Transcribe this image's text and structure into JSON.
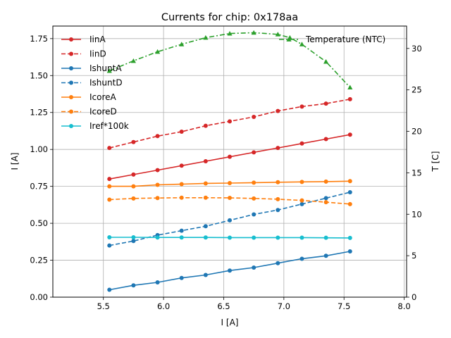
{
  "chart_data": {
    "type": "line",
    "title": "Currents for chip: 0x178aa",
    "xlabel": "I [A]",
    "ylabel": "I [A]",
    "y2label": "T [C]",
    "xlim": [
      5.08,
      8.02
    ],
    "ylim": [
      0.0,
      1.835
    ],
    "y2lim": [
      0.0,
      32.7
    ],
    "xticks": [
      5.5,
      6.0,
      6.5,
      7.0,
      7.5,
      8.0
    ],
    "xtick_labels": [
      "5.5",
      "6.0",
      "6.5",
      "7.0",
      "7.5",
      "8.0"
    ],
    "yticks": [
      0.0,
      0.25,
      0.5,
      0.75,
      1.0,
      1.25,
      1.5,
      1.75
    ],
    "ytick_labels": [
      "0.00",
      "0.25",
      "0.50",
      "0.75",
      "1.00",
      "1.25",
      "1.50",
      "1.75"
    ],
    "y2ticks": [
      0,
      5,
      10,
      15,
      20,
      25,
      30
    ],
    "y2tick_labels": [
      "0",
      "5",
      "10",
      "15",
      "20",
      "25",
      "30"
    ],
    "grid": true,
    "legend_position": "top-left",
    "x": [
      5.55,
      5.75,
      5.95,
      6.15,
      6.35,
      6.55,
      6.75,
      6.95,
      7.15,
      7.35,
      7.55
    ],
    "series": [
      {
        "name": "IinA",
        "color": "#d62728",
        "dashed": false,
        "marker": "circle",
        "values": [
          0.8,
          0.83,
          0.86,
          0.89,
          0.92,
          0.95,
          0.98,
          1.01,
          1.04,
          1.07,
          1.1
        ]
      },
      {
        "name": "IinD",
        "color": "#d62728",
        "dashed": true,
        "marker": "circle",
        "values": [
          1.01,
          1.05,
          1.09,
          1.12,
          1.16,
          1.19,
          1.22,
          1.26,
          1.29,
          1.31,
          1.34
        ]
      },
      {
        "name": "IshuntA",
        "color": "#1f77b4",
        "dashed": false,
        "marker": "circle",
        "values": [
          0.05,
          0.08,
          0.1,
          0.13,
          0.15,
          0.18,
          0.2,
          0.23,
          0.26,
          0.28,
          0.31
        ]
      },
      {
        "name": "IshuntD",
        "color": "#1f77b4",
        "dashed": true,
        "marker": "circle",
        "values": [
          0.35,
          0.38,
          0.42,
          0.45,
          0.48,
          0.52,
          0.56,
          0.59,
          0.63,
          0.67,
          0.71
        ]
      },
      {
        "name": "IcoreA",
        "color": "#ff7f0e",
        "dashed": false,
        "marker": "circle",
        "values": [
          0.75,
          0.75,
          0.76,
          0.765,
          0.77,
          0.772,
          0.775,
          0.778,
          0.78,
          0.782,
          0.785
        ]
      },
      {
        "name": "IcoreD",
        "color": "#ff7f0e",
        "dashed": true,
        "marker": "circle",
        "values": [
          0.66,
          0.668,
          0.671,
          0.673,
          0.673,
          0.672,
          0.668,
          0.663,
          0.655,
          0.643,
          0.63
        ]
      },
      {
        "name": "Iref*100k",
        "color": "#17becf",
        "dashed": false,
        "marker": "circle",
        "values": [
          0.405,
          0.405,
          0.404,
          0.404,
          0.404,
          0.403,
          0.403,
          0.403,
          0.403,
          0.402,
          0.401
        ]
      }
    ],
    "temperature_series": {
      "name": "Temperature (NTC)",
      "color": "#2ca02c",
      "dashed": true,
      "marker": "triangle",
      "x": [
        5.55,
        5.75,
        5.95,
        6.15,
        6.35,
        6.55,
        6.75,
        6.95,
        7.05,
        7.15,
        7.35,
        7.55
      ],
      "values": [
        27.3,
        28.5,
        29.6,
        30.5,
        31.3,
        31.8,
        31.9,
        31.7,
        31.3,
        30.5,
        28.4,
        25.3
      ]
    }
  }
}
